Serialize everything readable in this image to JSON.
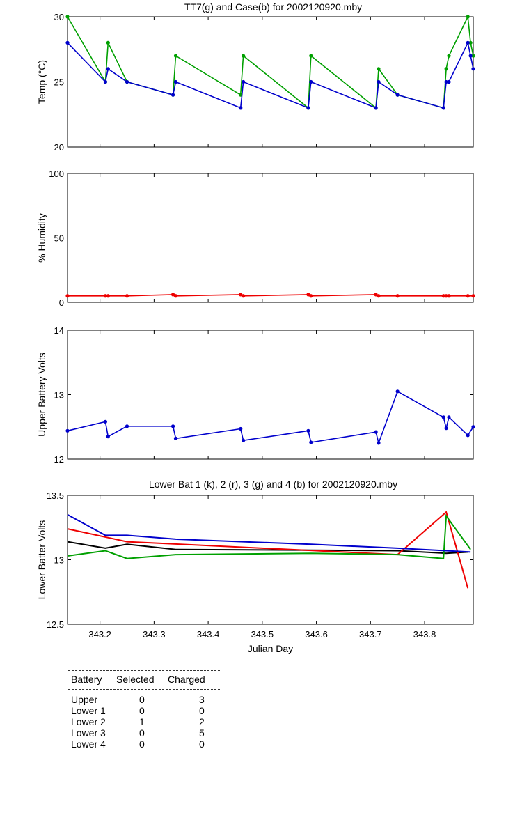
{
  "chart_data": [
    {
      "type": "line",
      "title": "TT7(g) and Case(b) for 2002120920.mby",
      "xlabel": "",
      "ylabel": "Temp  (°C)",
      "xlim": [
        343.14,
        343.89
      ],
      "ylim": [
        20,
        30
      ],
      "yticks": [
        "20",
        "25",
        "30"
      ],
      "series": [
        {
          "name": "TT7",
          "color": "#00a000",
          "x": [
            343.14,
            343.21,
            343.215,
            343.25,
            343.335,
            343.34,
            343.46,
            343.465,
            343.585,
            343.59,
            343.71,
            343.715,
            343.75,
            343.835,
            343.84,
            343.845,
            343.88,
            343.885,
            343.89
          ],
          "y": [
            30,
            25,
            28,
            25,
            24,
            27,
            24,
            27,
            23,
            27,
            23,
            26,
            24,
            23,
            26,
            27,
            30,
            28,
            27
          ]
        },
        {
          "name": "Case",
          "color": "#0000cc",
          "x": [
            343.14,
            343.21,
            343.215,
            343.25,
            343.335,
            343.34,
            343.46,
            343.465,
            343.585,
            343.59,
            343.71,
            343.715,
            343.75,
            343.835,
            343.84,
            343.845,
            343.88,
            343.885,
            343.89
          ],
          "y": [
            28,
            25,
            26,
            25,
            24,
            25,
            23,
            25,
            23,
            25,
            23,
            25,
            24,
            23,
            25,
            25,
            28,
            27,
            26
          ]
        }
      ]
    },
    {
      "type": "line",
      "title": "",
      "xlabel": "",
      "ylabel": "% Humidity",
      "xlim": [
        343.14,
        343.89
      ],
      "ylim": [
        0,
        100
      ],
      "yticks": [
        "0",
        "50",
        "100"
      ],
      "series": [
        {
          "name": "Humidity",
          "color": "#ee0000",
          "x": [
            343.14,
            343.21,
            343.215,
            343.25,
            343.335,
            343.34,
            343.46,
            343.465,
            343.585,
            343.59,
            343.71,
            343.715,
            343.75,
            343.835,
            343.84,
            343.845,
            343.88,
            343.89
          ],
          "y": [
            5,
            5,
            5,
            5,
            6,
            5,
            6,
            5,
            6,
            5,
            6,
            5,
            5,
            5,
            5,
            5,
            5,
            5
          ]
        }
      ]
    },
    {
      "type": "line",
      "title": "",
      "xlabel": "",
      "ylabel": "Upper Battery Volts",
      "xlim": [
        343.14,
        343.89
      ],
      "ylim": [
        12,
        14
      ],
      "yticks": [
        "12",
        "13",
        "14"
      ],
      "series": [
        {
          "name": "Upper Battery",
          "color": "#0000cc",
          "x": [
            343.14,
            343.21,
            343.215,
            343.25,
            343.335,
            343.34,
            343.46,
            343.465,
            343.585,
            343.59,
            343.71,
            343.715,
            343.75,
            343.835,
            343.84,
            343.845,
            343.88,
            343.89
          ],
          "y": [
            12.44,
            12.58,
            12.35,
            12.51,
            12.51,
            12.32,
            12.47,
            12.29,
            12.44,
            12.26,
            12.42,
            12.25,
            13.05,
            12.65,
            12.48,
            12.65,
            12.37,
            12.5
          ]
        }
      ]
    },
    {
      "type": "line",
      "title": "Lower Bat 1 (k), 2 (r), 3 (g) and 4 (b) for 2002120920.mby",
      "xlabel": "Julian Day",
      "ylabel": "Lower Batter Volts",
      "xlim": [
        343.14,
        343.89
      ],
      "ylim": [
        12.5,
        13.5
      ],
      "yticks": [
        "12.5",
        "13",
        "13.5"
      ],
      "xticks": [
        "343.2",
        "343.3",
        "343.4",
        "343.5",
        "343.6",
        "343.7",
        "343.8"
      ],
      "series": [
        {
          "name": "Lower 1",
          "color": "#000000",
          "x": [
            343.14,
            343.21,
            343.25,
            343.34,
            343.75,
            343.84,
            343.88
          ],
          "y": [
            13.14,
            13.09,
            13.12,
            13.08,
            13.07,
            13.05,
            13.06
          ]
        },
        {
          "name": "Lower 2",
          "color": "#ee0000",
          "x": [
            343.14,
            343.25,
            343.75,
            343.84,
            343.88
          ],
          "y": [
            13.24,
            13.14,
            13.04,
            13.37,
            12.78
          ]
        },
        {
          "name": "Lower 3",
          "color": "#00a000",
          "x": [
            343.14,
            343.21,
            343.25,
            343.34,
            343.59,
            343.75,
            343.835,
            343.84,
            343.885
          ],
          "y": [
            13.03,
            13.07,
            13.01,
            13.04,
            13.05,
            13.04,
            13.01,
            13.34,
            13.08
          ]
        },
        {
          "name": "Lower 4",
          "color": "#0000cc",
          "x": [
            343.14,
            343.21,
            343.25,
            343.34,
            343.59,
            343.75,
            343.84,
            343.885
          ],
          "y": [
            13.35,
            13.19,
            13.19,
            13.16,
            13.12,
            13.09,
            13.07,
            13.06
          ]
        }
      ]
    }
  ],
  "table": {
    "headers": [
      "Battery",
      "Selected",
      "Charged"
    ],
    "rows": [
      [
        "Upper",
        "0",
        "3"
      ],
      [
        "Lower 1",
        "0",
        "0"
      ],
      [
        "Lower 2",
        "1",
        "2"
      ],
      [
        "Lower 3",
        "0",
        "5"
      ],
      [
        "Lower 4",
        "0",
        "0"
      ]
    ]
  }
}
